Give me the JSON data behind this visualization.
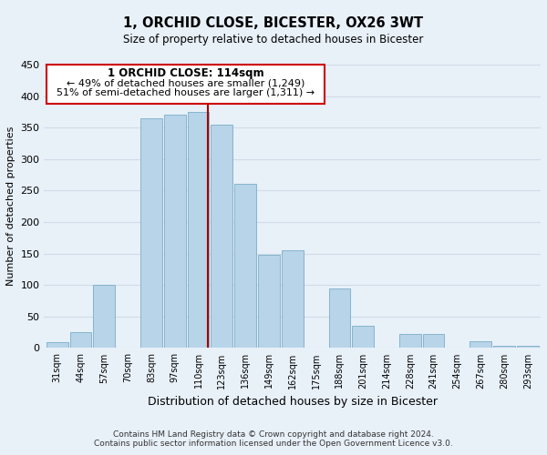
{
  "title": "1, ORCHID CLOSE, BICESTER, OX26 3WT",
  "subtitle": "Size of property relative to detached houses in Bicester",
  "xlabel": "Distribution of detached houses by size in Bicester",
  "ylabel": "Number of detached properties",
  "bar_labels": [
    "31sqm",
    "44sqm",
    "57sqm",
    "70sqm",
    "83sqm",
    "97sqm",
    "110sqm",
    "123sqm",
    "136sqm",
    "149sqm",
    "162sqm",
    "175sqm",
    "188sqm",
    "201sqm",
    "214sqm",
    "228sqm",
    "241sqm",
    "254sqm",
    "267sqm",
    "280sqm",
    "293sqm"
  ],
  "bar_heights": [
    10,
    25,
    100,
    0,
    365,
    370,
    375,
    355,
    260,
    148,
    155,
    0,
    95,
    35,
    0,
    22,
    22,
    0,
    11,
    3,
    3
  ],
  "bar_color": "#b8d4e8",
  "bar_edge_color": "#7aaec8",
  "vline_x": 6.42,
  "vline_color": "#aa0000",
  "ylim": [
    0,
    450
  ],
  "yticks": [
    0,
    50,
    100,
    150,
    200,
    250,
    300,
    350,
    400,
    450
  ],
  "annotation_title": "1 ORCHID CLOSE: 114sqm",
  "annotation_line1": "← 49% of detached houses are smaller (1,249)",
  "annotation_line2": "51% of semi-detached houses are larger (1,311) →",
  "annotation_box_color": "#ffffff",
  "annotation_box_edge": "#cc0000",
  "footer1": "Contains HM Land Registry data © Crown copyright and database right 2024.",
  "footer2": "Contains public sector information licensed under the Open Government Licence v3.0.",
  "background_color": "#e8f0f8",
  "grid_color": "#d0dce8"
}
